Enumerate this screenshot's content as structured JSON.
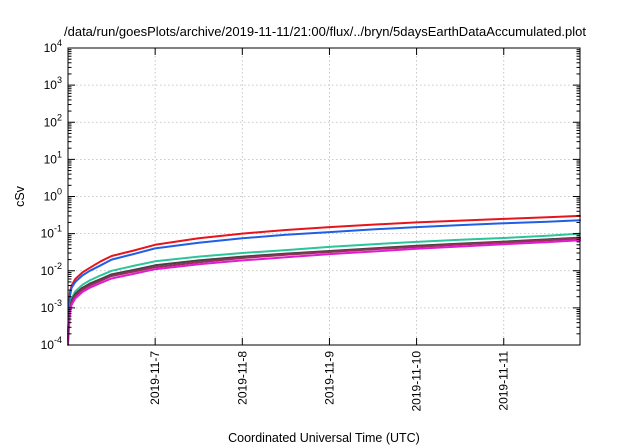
{
  "chart_data": {
    "type": "line",
    "title": "/data/run/goesPlots/archive/2019-11-11/21:00/flux/../bryn/5daysEarthDataAccumulated.plot",
    "xlabel": "Coordinated Universal Time (UTC)",
    "ylabel": "cSv",
    "y_scale": "log",
    "ylim": [
      0.0001,
      10000
    ],
    "xlim": [
      "2019-11-06 00:00",
      "2019-11-11 21:00"
    ],
    "grid": true,
    "legend": "none",
    "x_ticks": [
      "2019-11-7",
      "2019-11-8",
      "2019-11-9",
      "2019-11-10",
      "2019-11-11"
    ],
    "x_tick_dates": [
      "2019-11-07 00:00",
      "2019-11-08 00:00",
      "2019-11-09 00:00",
      "2019-11-10 00:00",
      "2019-11-11 00:00"
    ],
    "y_ticks": [
      {
        "base": "10",
        "exp": "-4",
        "value": 0.0001
      },
      {
        "base": "10",
        "exp": "-3",
        "value": 0.001
      },
      {
        "base": "10",
        "exp": "-2",
        "value": 0.01
      },
      {
        "base": "10",
        "exp": "-1",
        "value": 0.1
      },
      {
        "base": "10",
        "exp": "0",
        "value": 1
      },
      {
        "base": "10",
        "exp": "1",
        "value": 10
      },
      {
        "base": "10",
        "exp": "2",
        "value": 100
      },
      {
        "base": "10",
        "exp": "3",
        "value": 1000
      },
      {
        "base": "10",
        "exp": "4",
        "value": 10000
      }
    ],
    "series": [
      {
        "color": "#e8141b",
        "x": [
          "2019-11-06 00:00",
          "2019-11-06 00:30",
          "2019-11-06 01:00",
          "2019-11-06 02:00",
          "2019-11-06 04:00",
          "2019-11-06 06:00",
          "2019-11-06 09:00",
          "2019-11-06 12:00",
          "2019-11-06 18:00",
          "2019-11-07 00:00",
          "2019-11-07 12:00",
          "2019-11-08 00:00",
          "2019-11-08 12:00",
          "2019-11-09 00:00",
          "2019-11-09 12:00",
          "2019-11-10 00:00",
          "2019-11-10 12:00",
          "2019-11-11 00:00",
          "2019-11-11 12:00",
          "2019-11-11 21:00"
        ],
        "y": [
          0.0002,
          0.0025,
          0.004,
          0.006,
          0.009,
          0.012,
          0.018,
          0.025,
          0.035,
          0.05,
          0.075,
          0.1,
          0.125,
          0.15,
          0.175,
          0.2,
          0.225,
          0.25,
          0.275,
          0.3
        ]
      },
      {
        "color": "#1f5fe6",
        "x": [
          "2019-11-06 00:00",
          "2019-11-06 00:30",
          "2019-11-06 01:00",
          "2019-11-06 02:00",
          "2019-11-06 04:00",
          "2019-11-06 06:00",
          "2019-11-06 09:00",
          "2019-11-06 12:00",
          "2019-11-06 18:00",
          "2019-11-07 00:00",
          "2019-11-07 12:00",
          "2019-11-08 00:00",
          "2019-11-08 12:00",
          "2019-11-09 00:00",
          "2019-11-09 12:00",
          "2019-11-10 00:00",
          "2019-11-10 12:00",
          "2019-11-11 00:00",
          "2019-11-11 12:00",
          "2019-11-11 21:00"
        ],
        "y": [
          0.0002,
          0.002,
          0.0035,
          0.005,
          0.0075,
          0.01,
          0.014,
          0.02,
          0.028,
          0.04,
          0.057,
          0.075,
          0.093,
          0.11,
          0.13,
          0.15,
          0.17,
          0.19,
          0.21,
          0.23
        ]
      },
      {
        "color": "#2bc49b",
        "x": [
          "2019-11-06 00:00",
          "2019-11-06 00:30",
          "2019-11-06 01:00",
          "2019-11-06 02:00",
          "2019-11-06 04:00",
          "2019-11-06 06:00",
          "2019-11-06 09:00",
          "2019-11-06 12:00",
          "2019-11-06 18:00",
          "2019-11-07 00:00",
          "2019-11-07 12:00",
          "2019-11-08 00:00",
          "2019-11-08 12:00",
          "2019-11-09 00:00",
          "2019-11-09 12:00",
          "2019-11-10 00:00",
          "2019-11-10 12:00",
          "2019-11-11 00:00",
          "2019-11-11 12:00",
          "2019-11-11 21:00"
        ],
        "y": [
          0.00015,
          0.001,
          0.0018,
          0.0028,
          0.0042,
          0.0055,
          0.0075,
          0.01,
          0.0135,
          0.018,
          0.024,
          0.03,
          0.036,
          0.044,
          0.052,
          0.06,
          0.068,
          0.076,
          0.088,
          0.1
        ]
      },
      {
        "color": "#444444",
        "x": [
          "2019-11-06 00:00",
          "2019-11-06 00:30",
          "2019-11-06 01:00",
          "2019-11-06 02:00",
          "2019-11-06 04:00",
          "2019-11-06 06:00",
          "2019-11-06 09:00",
          "2019-11-06 12:00",
          "2019-11-06 18:00",
          "2019-11-07 00:00",
          "2019-11-07 12:00",
          "2019-11-08 00:00",
          "2019-11-08 12:00",
          "2019-11-09 00:00",
          "2019-11-09 12:00",
          "2019-11-10 00:00",
          "2019-11-10 12:00",
          "2019-11-11 00:00",
          "2019-11-11 12:00",
          "2019-11-11 21:00"
        ],
        "y": [
          0.00015,
          0.0009,
          0.0016,
          0.0024,
          0.0035,
          0.0045,
          0.006,
          0.008,
          0.0105,
          0.014,
          0.019,
          0.024,
          0.029,
          0.034,
          0.04,
          0.047,
          0.054,
          0.061,
          0.07,
          0.078
        ]
      },
      {
        "color": "#9b2d5a",
        "x": [
          "2019-11-06 00:00",
          "2019-11-06 00:30",
          "2019-11-06 01:00",
          "2019-11-06 02:00",
          "2019-11-06 04:00",
          "2019-11-06 06:00",
          "2019-11-06 09:00",
          "2019-11-06 12:00",
          "2019-11-06 18:00",
          "2019-11-07 00:00",
          "2019-11-07 12:00",
          "2019-11-08 00:00",
          "2019-11-08 12:00",
          "2019-11-09 00:00",
          "2019-11-09 12:00",
          "2019-11-10 00:00",
          "2019-11-10 12:00",
          "2019-11-11 00:00",
          "2019-11-11 12:00",
          "2019-11-11 21:00"
        ],
        "y": [
          0.00013,
          0.0008,
          0.0014,
          0.0021,
          0.0031,
          0.004,
          0.0054,
          0.0072,
          0.0095,
          0.0125,
          0.017,
          0.022,
          0.027,
          0.032,
          0.038,
          0.044,
          0.051,
          0.058,
          0.066,
          0.074
        ]
      },
      {
        "color": "#e01bd2",
        "x": [
          "2019-11-06 00:00",
          "2019-11-06 00:30",
          "2019-11-06 01:00",
          "2019-11-06 02:00",
          "2019-11-06 04:00",
          "2019-11-06 06:00",
          "2019-11-06 09:00",
          "2019-11-06 12:00",
          "2019-11-06 18:00",
          "2019-11-07 00:00",
          "2019-11-07 12:00",
          "2019-11-08 00:00",
          "2019-11-08 12:00",
          "2019-11-09 00:00",
          "2019-11-09 12:00",
          "2019-11-10 00:00",
          "2019-11-10 12:00",
          "2019-11-11 00:00",
          "2019-11-11 12:00",
          "2019-11-11 21:00"
        ],
        "y": [
          0.0001,
          0.0007,
          0.0012,
          0.0018,
          0.0027,
          0.0035,
          0.0047,
          0.0062,
          0.0082,
          0.011,
          0.015,
          0.019,
          0.023,
          0.028,
          0.033,
          0.039,
          0.045,
          0.052,
          0.059,
          0.066
        ]
      }
    ]
  }
}
